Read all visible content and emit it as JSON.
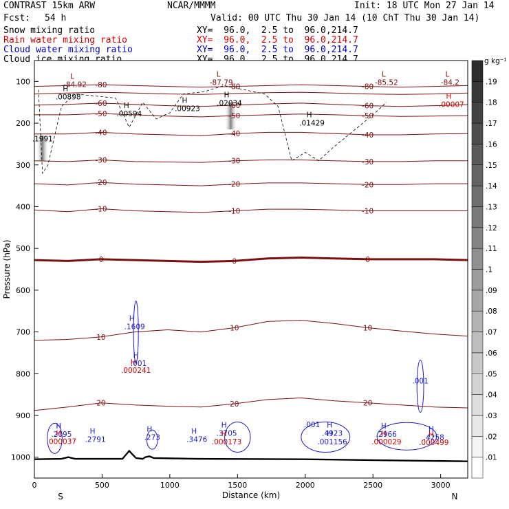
{
  "header": {
    "model": "CONTRAST 15km ARW",
    "org": "NCAR/MMMM",
    "init": "Init: 18 UTC Mon 27 Jan 14",
    "fcst_label": "Fcst:",
    "fcst_value": "54 h",
    "valid": "Valid: 00 UTC Thu 30 Jan 14 (10 ChT Thu 30 Jan 14)",
    "fields": [
      {
        "name": "Snow mixing ratio",
        "xy": "XY=  96.0,  2.5 to  96.0,214.7",
        "color": "#000000"
      },
      {
        "name": "Rain water mixing ratio",
        "xy": "XY=  96.0,  2.5 to  96.0,214.7",
        "color": "#cc0000"
      },
      {
        "name": "Cloud water mixing ratio",
        "xy": "XY=  96.0,  2.5 to  96.0,214.7",
        "color": "#0000cc"
      },
      {
        "name": "Cloud ice mixing ratio",
        "xy": "XY=  96.0,  2.5 to  96.0,214.7",
        "color": "#000000"
      }
    ]
  },
  "chart_data": {
    "type": "contour cross-section",
    "xlabel": "Distance (km)",
    "ylabel": "Pressure (hPa)",
    "xlim": [
      0,
      3200
    ],
    "ylim": [
      1050,
      50
    ],
    "x_ticks": [
      0,
      500,
      1000,
      1500,
      2000,
      2500,
      3000
    ],
    "y_ticks": [
      100,
      200,
      300,
      400,
      500,
      600,
      700,
      800,
      900,
      1000
    ],
    "end_labels": {
      "left": "S",
      "right": "N"
    },
    "colorbar": {
      "unit": "g kg⁻¹",
      "levels": [
        ".01",
        ".02",
        ".03",
        ".04",
        ".05",
        ".06",
        ".07",
        ".08",
        ".09",
        ".1",
        ".11",
        ".12",
        ".13",
        ".14",
        ".15",
        ".16",
        ".17",
        ".18",
        ".19"
      ]
    },
    "temperature_contours": [
      {
        "label": "-80",
        "p": [
          112,
          110,
          108,
          110,
          112,
          114,
          112,
          110,
          108,
          110,
          112,
          114,
          112,
          110
        ]
      },
      {
        "label": "",
        "p": [
          130,
          128,
          126,
          128,
          130,
          131,
          129,
          127,
          126,
          128,
          130,
          131,
          130,
          128
        ]
      },
      {
        "label": "-60",
        "p": [
          157,
          155,
          152,
          155,
          158,
          160,
          157,
          154,
          152,
          155,
          158,
          160,
          158,
          156
        ]
      },
      {
        "label": "-50",
        "p": [
          180,
          180,
          177,
          180,
          183,
          185,
          182,
          180,
          178,
          180,
          182,
          184,
          183,
          182
        ]
      },
      {
        "label": "-40",
        "p": [
          226,
          226,
          222,
          226,
          228,
          230,
          225,
          222,
          222,
          225,
          228,
          228,
          226,
          225
        ]
      },
      {
        "label": "-30",
        "p": [
          290,
          292,
          288,
          292,
          293,
          294,
          290,
          288,
          288,
          290,
          292,
          292,
          290,
          290
        ]
      },
      {
        "label": "-20",
        "p": [
          345,
          348,
          342,
          346,
          348,
          350,
          346,
          343,
          343,
          345,
          347,
          347,
          345,
          345
        ]
      },
      {
        "label": "-10",
        "p": [
          408,
          412,
          405,
          410,
          412,
          414,
          410,
          406,
          406,
          408,
          410,
          410,
          410,
          410
        ]
      },
      {
        "label": "0",
        "p": [
          528,
          530,
          526,
          528,
          530,
          532,
          530,
          524,
          522,
          524,
          526,
          526,
          526,
          528
        ],
        "bold": true
      },
      {
        "label": "10",
        "p": [
          720,
          718,
          712,
          700,
          695,
          700,
          690,
          675,
          672,
          680,
          690,
          698,
          705,
          710
        ]
      },
      {
        "label": "20",
        "p": [
          888,
          880,
          870,
          875,
          878,
          880,
          872,
          862,
          858,
          865,
          870,
          875,
          880,
          882
        ]
      }
    ],
    "highs_lows": [
      {
        "type": "L",
        "value": "-84.92",
        "x": 300,
        "p": 110
      },
      {
        "type": "L",
        "value": "-87.79",
        "x": 1380,
        "p": 105
      },
      {
        "type": "L",
        "value": "-85.52",
        "x": 2600,
        "p": 105
      },
      {
        "type": "L",
        "value": "-84.2",
        "x": 3070,
        "p": 105
      },
      {
        "type": "H",
        "value": ".00898",
        "x": 250,
        "p": 140
      },
      {
        "type": "H",
        "value": ".00594",
        "x": 700,
        "p": 180
      },
      {
        "type": "H",
        "value": ".00923",
        "x": 1130,
        "p": 168
      },
      {
        "type": "H",
        "value": ".02034",
        "x": 1440,
        "p": 155
      },
      {
        "type": "H",
        "value": ".01429",
        "x": 2050,
        "p": 202
      },
      {
        "type": "H",
        "value": ".00007",
        "x": 3080,
        "p": 158
      },
      {
        "type": "",
        "value": ".1991",
        "x": 60,
        "p": 240
      },
      {
        "type": "H",
        "value": ".1609",
        "x": 740,
        "p": 690
      },
      {
        "type": "H",
        "value": ".001",
        "x": 770,
        "p": 778
      },
      {
        "type": "H",
        "value": ".000241",
        "x": 750,
        "p": 795
      },
      {
        "type": "",
        "value": ".001",
        "x": 2850,
        "p": 820
      },
      {
        "type": "H",
        "value": ".2095",
        "x": 200,
        "p": 948
      },
      {
        "type": "H",
        "value": ".000037",
        "x": 200,
        "p": 965
      },
      {
        "type": "H",
        "value": ".2791",
        "x": 450,
        "p": 960
      },
      {
        "type": "H",
        "value": ".273",
        "x": 870,
        "p": 955
      },
      {
        "type": "H",
        "value": ".3476",
        "x": 1200,
        "p": 960
      },
      {
        "type": "H",
        "value": ".3705",
        "x": 1420,
        "p": 945
      },
      {
        "type": "H",
        "value": ".000173",
        "x": 1420,
        "p": 966
      },
      {
        "type": "H",
        "value": ".4923",
        "x": 2200,
        "p": 945
      },
      {
        "type": "H",
        "value": ".001156",
        "x": 2200,
        "p": 966
      },
      {
        "type": "",
        "value": ".001",
        "x": 2050,
        "p": 925
      },
      {
        "type": "H",
        "value": ".2966",
        "x": 2600,
        "p": 948
      },
      {
        "type": "H",
        "value": ".000029",
        "x": 2600,
        "p": 966
      },
      {
        "type": "H",
        "value": ".4258",
        "x": 2950,
        "p": 955
      },
      {
        "type": "H",
        "value": ".000499",
        "x": 2950,
        "p": 968
      }
    ],
    "surface": {
      "x": [
        0,
        200,
        250,
        300,
        650,
        700,
        750,
        800,
        820,
        850,
        880,
        1200,
        2000,
        3200
      ],
      "p": [
        1005,
        1004,
        1000,
        1004,
        1004,
        985,
        1002,
        1004,
        1000,
        998,
        1002,
        1004,
        1005,
        1010
      ]
    }
  }
}
